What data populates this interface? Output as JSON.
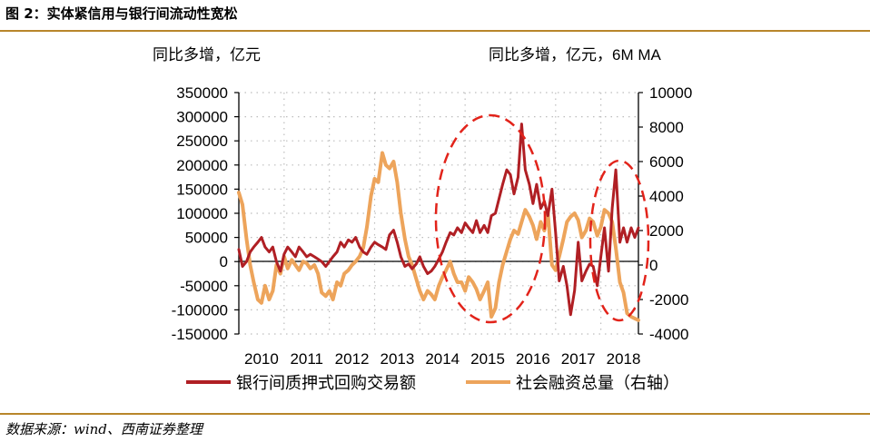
{
  "figure": {
    "title": "图 2：实体紧信用与银行间流动性宽松",
    "source": "数据来源：wind、西南证券整理"
  },
  "colors": {
    "series_repo": "#b01f24",
    "series_tsf": "#eda45b",
    "ellipse": "#e2231a",
    "rule": "#b8862b",
    "grid": "#bdbdbd"
  },
  "chart_data": {
    "type": "line",
    "left_unit_label": "同比多增，亿元",
    "right_unit_label": "同比多增，亿元，6M MA",
    "x_range": [
      2010,
      2018.83
    ],
    "x_ticks": [
      "2010",
      "2011",
      "2012",
      "2013",
      "2014",
      "2015",
      "2016",
      "2017",
      "2018"
    ],
    "ylim_left": [
      -150000,
      350000
    ],
    "yticks_left": [
      "350000",
      "300000",
      "250000",
      "200000",
      "150000",
      "100000",
      "50000",
      "0",
      "-50000",
      "-100000",
      "-150000"
    ],
    "ylim_right": [
      -4000,
      10000
    ],
    "yticks_right": [
      "10000",
      "8000",
      "6000",
      "4000",
      "2000",
      "0",
      "-2000",
      "-4000"
    ],
    "series": [
      {
        "name": "银行间质押式回购交易额",
        "axis": "left",
        "color": "#b01f24",
        "points": [
          [
            2010.0,
            25000
          ],
          [
            2010.08,
            -10000
          ],
          [
            2010.17,
            0
          ],
          [
            2010.25,
            20000
          ],
          [
            2010.33,
            30000
          ],
          [
            2010.42,
            40000
          ],
          [
            2010.5,
            50000
          ],
          [
            2010.58,
            30000
          ],
          [
            2010.67,
            20000
          ],
          [
            2010.75,
            30000
          ],
          [
            2010.83,
            0
          ],
          [
            2010.92,
            -20000
          ],
          [
            2011.0,
            15000
          ],
          [
            2011.08,
            30000
          ],
          [
            2011.17,
            20000
          ],
          [
            2011.25,
            10000
          ],
          [
            2011.33,
            30000
          ],
          [
            2011.42,
            20000
          ],
          [
            2011.5,
            10000
          ],
          [
            2011.58,
            15000
          ],
          [
            2011.67,
            10000
          ],
          [
            2011.75,
            5000
          ],
          [
            2011.83,
            0
          ],
          [
            2011.92,
            -10000
          ],
          [
            2012.0,
            0
          ],
          [
            2012.08,
            10000
          ],
          [
            2012.17,
            20000
          ],
          [
            2012.25,
            40000
          ],
          [
            2012.33,
            30000
          ],
          [
            2012.42,
            45000
          ],
          [
            2012.5,
            40000
          ],
          [
            2012.58,
            50000
          ],
          [
            2012.67,
            30000
          ],
          [
            2012.75,
            20000
          ],
          [
            2012.83,
            15000
          ],
          [
            2012.92,
            30000
          ],
          [
            2013.0,
            40000
          ],
          [
            2013.08,
            35000
          ],
          [
            2013.17,
            30000
          ],
          [
            2013.25,
            25000
          ],
          [
            2013.33,
            55000
          ],
          [
            2013.42,
            65000
          ],
          [
            2013.5,
            40000
          ],
          [
            2013.58,
            10000
          ],
          [
            2013.67,
            -10000
          ],
          [
            2013.75,
            -5000
          ],
          [
            2013.83,
            -15000
          ],
          [
            2013.92,
            -5000
          ],
          [
            2014.0,
            10000
          ],
          [
            2014.08,
            -10000
          ],
          [
            2014.17,
            -25000
          ],
          [
            2014.25,
            -20000
          ],
          [
            2014.33,
            -10000
          ],
          [
            2014.42,
            5000
          ],
          [
            2014.5,
            20000
          ],
          [
            2014.58,
            40000
          ],
          [
            2014.67,
            60000
          ],
          [
            2014.75,
            55000
          ],
          [
            2014.83,
            70000
          ],
          [
            2014.92,
            60000
          ],
          [
            2015.0,
            80000
          ],
          [
            2015.08,
            70000
          ],
          [
            2015.17,
            60000
          ],
          [
            2015.25,
            85000
          ],
          [
            2015.33,
            60000
          ],
          [
            2015.42,
            75000
          ],
          [
            2015.5,
            60000
          ],
          [
            2015.58,
            95000
          ],
          [
            2015.67,
            100000
          ],
          [
            2015.75,
            130000
          ],
          [
            2015.83,
            160000
          ],
          [
            2015.92,
            190000
          ],
          [
            2016.0,
            180000
          ],
          [
            2016.08,
            140000
          ],
          [
            2016.17,
            175000
          ],
          [
            2016.25,
            285000
          ],
          [
            2016.33,
            190000
          ],
          [
            2016.42,
            160000
          ],
          [
            2016.5,
            120000
          ],
          [
            2016.58,
            160000
          ],
          [
            2016.67,
            110000
          ],
          [
            2016.75,
            125000
          ],
          [
            2016.83,
            95000
          ],
          [
            2016.92,
            150000
          ],
          [
            2017.0,
            60000
          ],
          [
            2017.08,
            -40000
          ],
          [
            2017.17,
            -10000
          ],
          [
            2017.25,
            -50000
          ],
          [
            2017.33,
            -110000
          ],
          [
            2017.42,
            -60000
          ],
          [
            2017.5,
            40000
          ],
          [
            2017.58,
            -40000
          ],
          [
            2017.67,
            -20000
          ],
          [
            2017.75,
            -5000
          ],
          [
            2017.83,
            -10000
          ],
          [
            2017.92,
            -50000
          ],
          [
            2018.0,
            10000
          ],
          [
            2018.08,
            70000
          ],
          [
            2018.17,
            -20000
          ],
          [
            2018.25,
            110000
          ],
          [
            2018.33,
            190000
          ],
          [
            2018.42,
            40000
          ],
          [
            2018.5,
            70000
          ],
          [
            2018.58,
            40000
          ],
          [
            2018.67,
            70000
          ],
          [
            2018.75,
            50000
          ],
          [
            2018.83,
            70000
          ]
        ]
      },
      {
        "name": "社会融资总量（右轴）",
        "axis": "right",
        "color": "#eda45b",
        "points": [
          [
            2010.0,
            4200
          ],
          [
            2010.08,
            3500
          ],
          [
            2010.17,
            1500
          ],
          [
            2010.25,
            0
          ],
          [
            2010.33,
            -1000
          ],
          [
            2010.42,
            -2000
          ],
          [
            2010.5,
            -2200
          ],
          [
            2010.58,
            -1200
          ],
          [
            2010.67,
            -2000
          ],
          [
            2010.75,
            -1500
          ],
          [
            2010.83,
            0
          ],
          [
            2010.92,
            -500
          ],
          [
            2011.0,
            500
          ],
          [
            2011.08,
            -200
          ],
          [
            2011.17,
            300
          ],
          [
            2011.25,
            0
          ],
          [
            2011.33,
            -300
          ],
          [
            2011.42,
            200
          ],
          [
            2011.5,
            100
          ],
          [
            2011.58,
            -200
          ],
          [
            2011.67,
            0
          ],
          [
            2011.75,
            -500
          ],
          [
            2011.83,
            -1600
          ],
          [
            2011.92,
            -1800
          ],
          [
            2012.0,
            -1500
          ],
          [
            2012.08,
            -2000
          ],
          [
            2012.17,
            -1000
          ],
          [
            2012.25,
            -1200
          ],
          [
            2012.33,
            -500
          ],
          [
            2012.42,
            -300
          ],
          [
            2012.5,
            0
          ],
          [
            2012.58,
            200
          ],
          [
            2012.67,
            500
          ],
          [
            2012.75,
            1000
          ],
          [
            2012.83,
            2200
          ],
          [
            2012.92,
            4000
          ],
          [
            2013.0,
            5000
          ],
          [
            2013.08,
            4800
          ],
          [
            2013.17,
            6500
          ],
          [
            2013.25,
            5800
          ],
          [
            2013.33,
            5600
          ],
          [
            2013.42,
            6000
          ],
          [
            2013.5,
            4800
          ],
          [
            2013.58,
            3000
          ],
          [
            2013.67,
            1500
          ],
          [
            2013.75,
            500
          ],
          [
            2013.83,
            0
          ],
          [
            2013.92,
            -800
          ],
          [
            2014.0,
            -1500
          ],
          [
            2014.08,
            -2000
          ],
          [
            2014.17,
            -1500
          ],
          [
            2014.25,
            -1700
          ],
          [
            2014.33,
            -2000
          ],
          [
            2014.42,
            -1200
          ],
          [
            2014.5,
            -700
          ],
          [
            2014.58,
            -300
          ],
          [
            2014.67,
            200
          ],
          [
            2014.75,
            -500
          ],
          [
            2014.83,
            -1000
          ],
          [
            2014.92,
            -1000
          ],
          [
            2015.0,
            -1500
          ],
          [
            2015.08,
            -700
          ],
          [
            2015.17,
            -1000
          ],
          [
            2015.25,
            -1400
          ],
          [
            2015.33,
            -2000
          ],
          [
            2015.42,
            -1500
          ],
          [
            2015.5,
            -1000
          ],
          [
            2015.58,
            -3000
          ],
          [
            2015.67,
            -2500
          ],
          [
            2015.75,
            -1000
          ],
          [
            2015.83,
            0
          ],
          [
            2015.92,
            800
          ],
          [
            2016.0,
            1500
          ],
          [
            2016.08,
            2000
          ],
          [
            2016.17,
            1800
          ],
          [
            2016.25,
            2500
          ],
          [
            2016.33,
            3200
          ],
          [
            2016.42,
            2800
          ],
          [
            2016.5,
            2300
          ],
          [
            2016.58,
            1500
          ],
          [
            2016.67,
            2500
          ],
          [
            2016.75,
            2000
          ],
          [
            2016.83,
            3000
          ],
          [
            2016.92,
            0
          ],
          [
            2017.0,
            -300
          ],
          [
            2017.08,
            500
          ],
          [
            2017.17,
            1500
          ],
          [
            2017.25,
            2500
          ],
          [
            2017.33,
            2800
          ],
          [
            2017.42,
            3000
          ],
          [
            2017.5,
            2600
          ],
          [
            2017.58,
            1600
          ],
          [
            2017.67,
            2000
          ],
          [
            2017.75,
            2700
          ],
          [
            2017.83,
            2500
          ],
          [
            2017.92,
            1700
          ],
          [
            2018.0,
            2200
          ],
          [
            2018.08,
            3200
          ],
          [
            2018.17,
            3000
          ],
          [
            2018.25,
            2500
          ],
          [
            2018.33,
            1000
          ],
          [
            2018.42,
            -1000
          ],
          [
            2018.5,
            -1600
          ],
          [
            2018.58,
            -2800
          ],
          [
            2018.67,
            -3000
          ],
          [
            2018.75,
            -3100
          ],
          [
            2018.83,
            -3200
          ]
        ]
      }
    ],
    "highlight_ellipses": 2
  }
}
